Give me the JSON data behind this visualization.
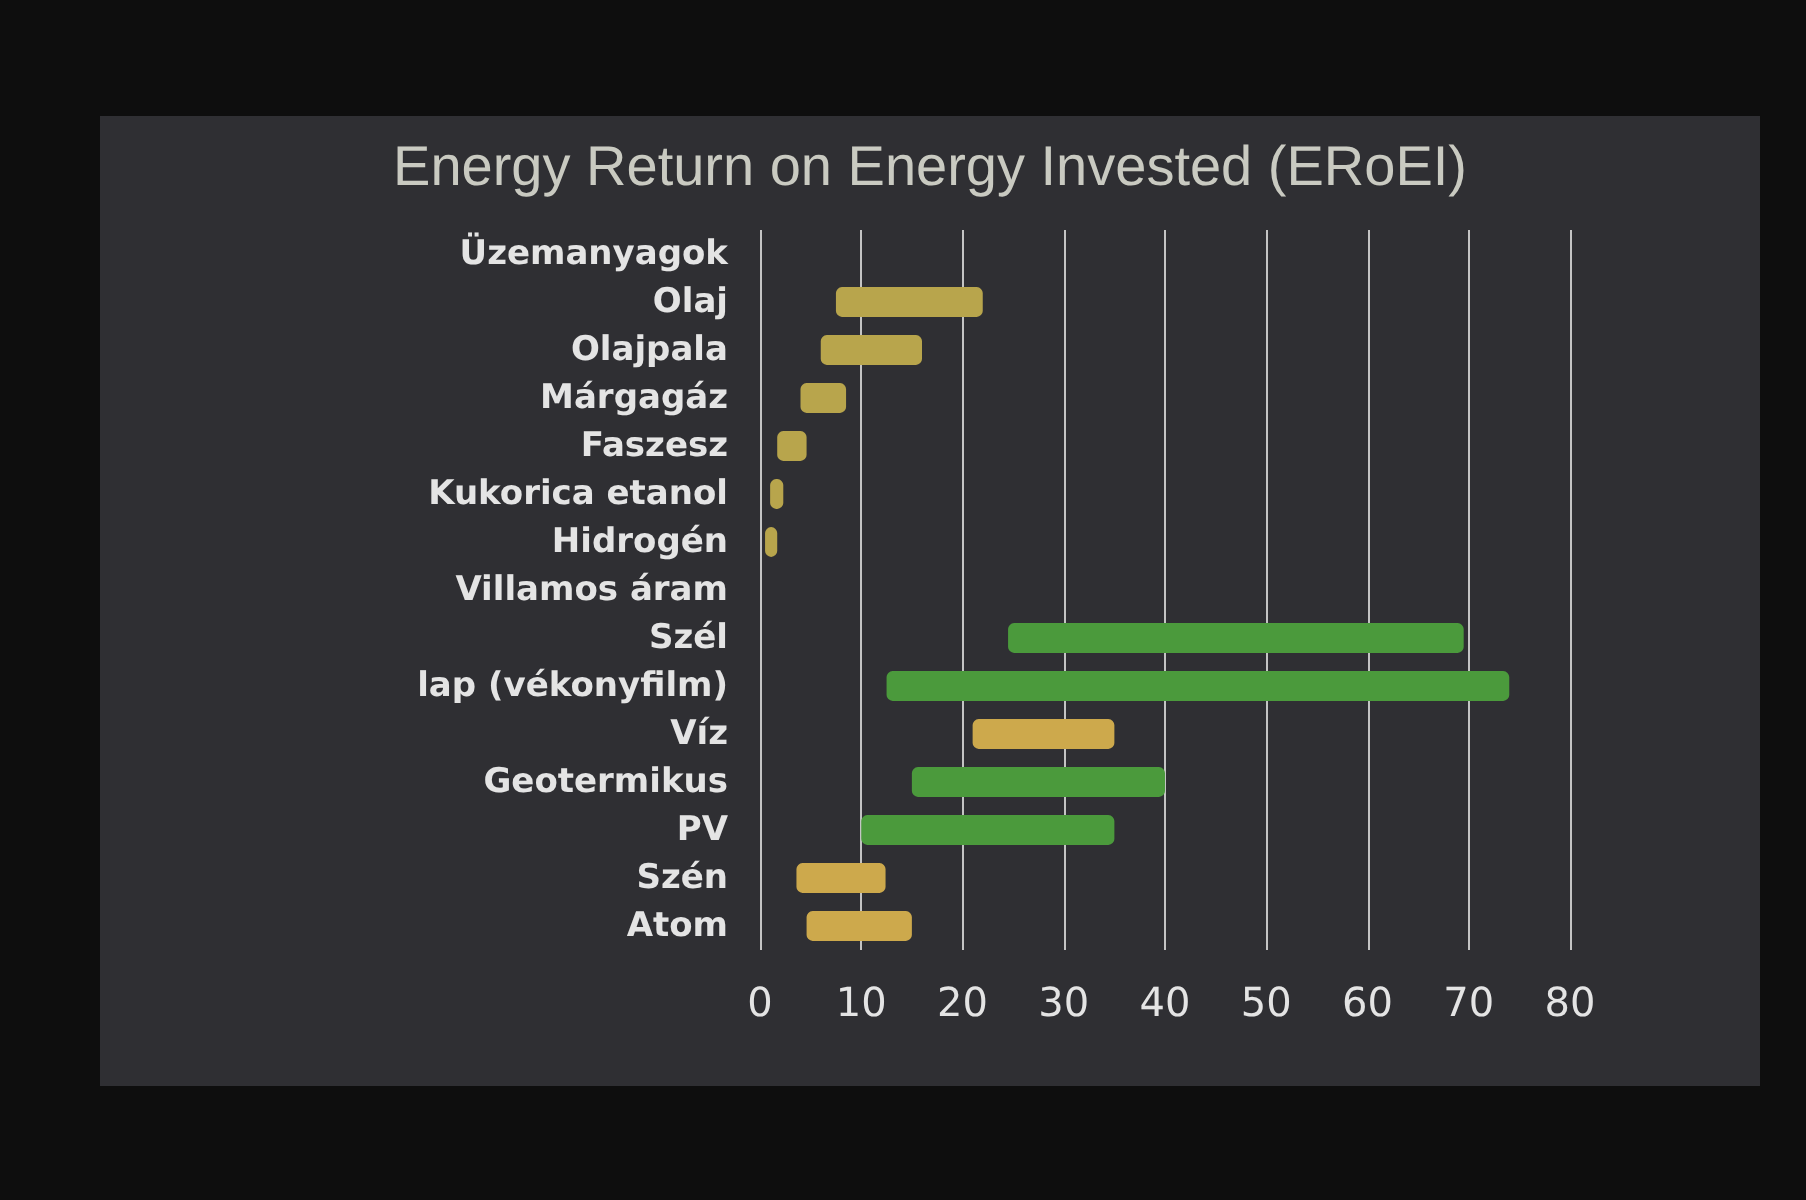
{
  "chart_data": {
    "type": "bar",
    "orientation": "horizontal",
    "title": "Energy Return on Energy Invested (ERoEI)",
    "categories": [
      "Üzemanyagok",
      "Olaj",
      "Olajpala",
      "Márgagáz",
      "Faszesz",
      "Kukorica etanol",
      "Hidrogén",
      "Villamos áram",
      "Szél",
      "lap (vékonyfilm)",
      "Víz",
      "Geotermikus",
      "PV",
      "Szén",
      "Atom"
    ],
    "base": [
      null,
      7.5,
      6,
      4,
      1.7,
      1,
      0.5,
      null,
      24.5,
      12.5,
      21,
      15,
      10,
      3.6,
      4.6
    ],
    "values": [
      null,
      14.5,
      10,
      4.5,
      2.9,
      1.3,
      1.2,
      null,
      45,
      61.5,
      14,
      25,
      25,
      8.8,
      10.4
    ],
    "colors": [
      null,
      "#b8a54c",
      "#b8a54c",
      "#b8a54c",
      "#b8a54c",
      "#b8a54c",
      "#b8a54c",
      null,
      "#4b9a3c",
      "#4b9a3c",
      "#cda94c",
      "#4b9a3c",
      "#4b9a3c",
      "#cda94c",
      "#cda94c"
    ],
    "xlim": [
      0,
      80
    ],
    "xticks": [
      0,
      10,
      20,
      30,
      40,
      50,
      60,
      70,
      80
    ],
    "grid": "x"
  }
}
